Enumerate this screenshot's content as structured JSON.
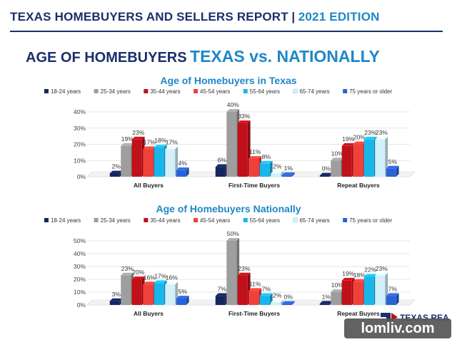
{
  "header": {
    "title": "TEXAS HOMEBUYERS AND SELLERS REPORT",
    "separator": "|",
    "edition": "2021 EDITION"
  },
  "page_title": {
    "part1": "AGE OF HOMEBUYERS",
    "part2": "TEXAS vs. NATIONALLY"
  },
  "logo": {
    "text": "TEXAS REALTORS"
  },
  "watermark": {
    "text": "lomliv.com"
  },
  "colors": {
    "18-24 years": "#14265e",
    "25-34 years": "#9e9e9e",
    "35-44 years": "#c0101a",
    "45-54 years": "#f0403a",
    "55-64 years": "#18b6ea",
    "65-74 years": "#d2f0fa",
    "75 years or older": "#2a62d6"
  },
  "chart_data": [
    {
      "type": "bar",
      "title": "Age of Homebuyers in Texas",
      "categories": [
        "All Buyers",
        "First-Time Buyers",
        "Repeat Buyers"
      ],
      "series": [
        {
          "name": "18-24 years",
          "values": [
            2,
            6,
            0
          ]
        },
        {
          "name": "25-34 years",
          "values": [
            19,
            40,
            10
          ]
        },
        {
          "name": "35-44 years",
          "values": [
            23,
            33,
            19
          ]
        },
        {
          "name": "45-54 years",
          "values": [
            17,
            11,
            20
          ]
        },
        {
          "name": "55-64 years",
          "values": [
            18,
            8,
            23
          ]
        },
        {
          "name": "65-74 years",
          "values": [
            17,
            2,
            23
          ]
        },
        {
          "name": "75 years or older",
          "values": [
            4,
            1,
            5
          ]
        }
      ],
      "yticks": [
        "0%",
        "10%",
        "20%",
        "30%",
        "40%"
      ],
      "ylim": [
        0,
        40
      ],
      "legend": "top"
    },
    {
      "type": "bar",
      "title": "Age of Homebuyers Nationally",
      "categories": [
        "All Buyers",
        "First-Time Buyers",
        "Repeat Buyers"
      ],
      "series": [
        {
          "name": "18-24 years",
          "values": [
            3,
            7,
            1
          ]
        },
        {
          "name": "25-34 years",
          "values": [
            23,
            50,
            10
          ]
        },
        {
          "name": "35-44 years",
          "values": [
            20,
            23,
            19
          ]
        },
        {
          "name": "45-54 years",
          "values": [
            16,
            11,
            18
          ]
        },
        {
          "name": "55-64 years",
          "values": [
            17,
            7,
            22
          ]
        },
        {
          "name": "65-74 years",
          "values": [
            16,
            2,
            23
          ]
        },
        {
          "name": "75 years or older",
          "values": [
            5,
            0,
            7
          ]
        }
      ],
      "yticks": [
        "0%",
        "10%",
        "20%",
        "30%",
        "40%",
        "50%"
      ],
      "ylim": [
        0,
        50
      ],
      "legend": "top"
    }
  ]
}
